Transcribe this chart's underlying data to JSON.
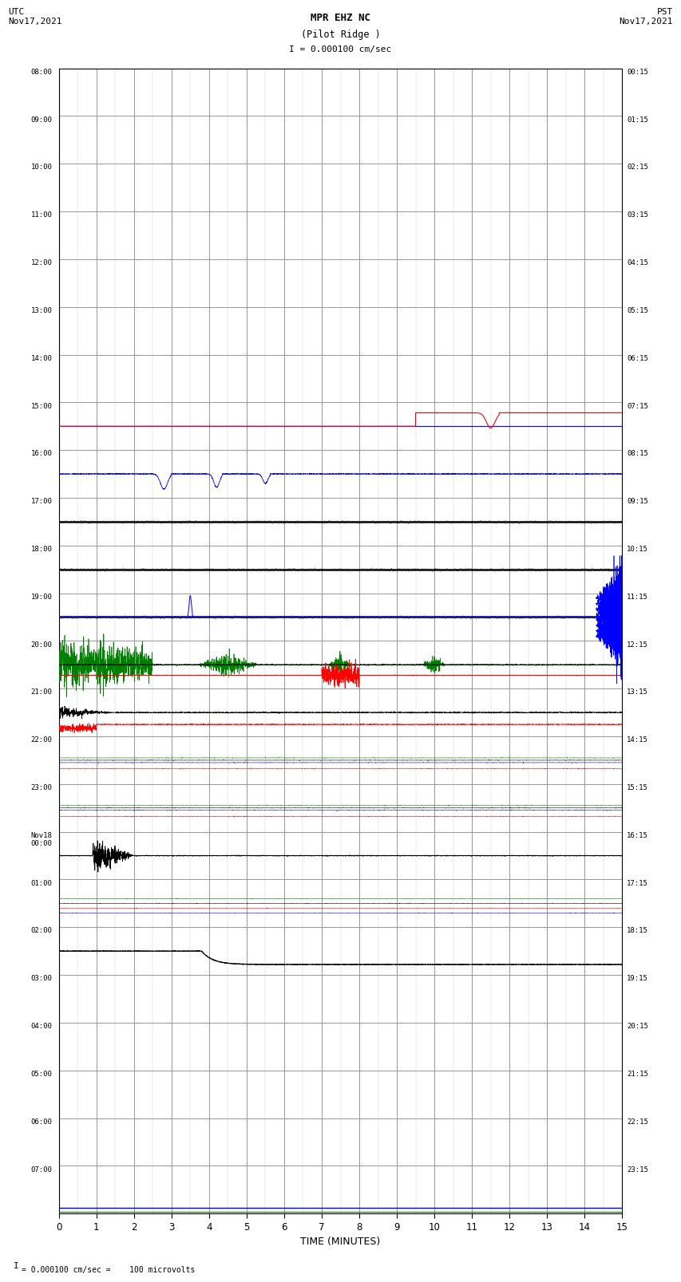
{
  "title_line1": "MPR EHZ NC",
  "title_line2": "(Pilot Ridge )",
  "title_line3": "I = 0.000100 cm/sec",
  "label_utc": "UTC\nNov17,2021",
  "label_pst": "PST\nNov17,2021",
  "xlabel": "TIME (MINUTES)",
  "footer": "= 0.000100 cm/sec =    100 microvolts",
  "xlim": [
    0,
    15
  ],
  "xticks": [
    0,
    1,
    2,
    3,
    4,
    5,
    6,
    7,
    8,
    9,
    10,
    11,
    12,
    13,
    14,
    15
  ],
  "bg_color": "#ffffff",
  "grid_color": "#888888",
  "minor_grid_color": "#cccccc",
  "num_rows": 24,
  "utc_labels": [
    "08:00",
    "09:00",
    "10:00",
    "11:00",
    "12:00",
    "13:00",
    "14:00",
    "15:00",
    "16:00",
    "17:00",
    "18:00",
    "19:00",
    "20:00",
    "21:00",
    "22:00",
    "23:00",
    "Nov18\n00:00",
    "01:00",
    "02:00",
    "03:00",
    "04:00",
    "05:00",
    "06:00",
    "07:00"
  ],
  "pst_labels": [
    "00:15",
    "01:15",
    "02:15",
    "03:15",
    "04:15",
    "05:15",
    "06:15",
    "07:15",
    "08:15",
    "09:15",
    "10:15",
    "11:15",
    "12:15",
    "13:15",
    "14:15",
    "15:15",
    "16:15",
    "17:15",
    "18:15",
    "19:15",
    "20:15",
    "21:15",
    "22:15",
    "23:15"
  ]
}
